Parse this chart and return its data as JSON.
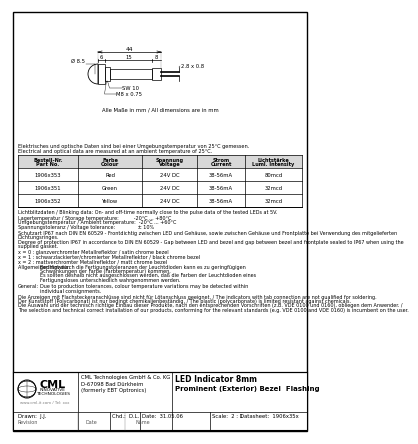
{
  "title_line1": "LED Indicator 8mm",
  "title_line2": "Prominent (Exterior) Bezel  Flashing",
  "company_name": "CML Technologies GmbH & Co. KG",
  "company_addr1": "D-67098 Bad Dürkheim",
  "company_addr2": "(formerly EBT Optronics)",
  "drawn": "J.J.",
  "checked": "D.L.",
  "date": "31.05.06",
  "scale": "2 : 1",
  "datasheet": "1906x35x",
  "note_dimensions": "Alle Maße in mm / All dimensions are in mm",
  "note_meas1": "Elektrisches und optische Daten sind bei einer Umgebungstemperatur von 25°C gemessen.",
  "note_meas2": "Electrical and optical data are measured at an ambient temperature of 25°C.",
  "table_headers": [
    "Bestell-Nr.\nPart No.",
    "Farbe\nColour",
    "Spannung\nVoltage",
    "Strom\nCurrent",
    "Lichtstärke\nLuml. Intensity"
  ],
  "table_rows": [
    [
      "1906x353",
      "Red",
      "24V DC",
      "38-56mA",
      "80mcd"
    ],
    [
      "1906x351",
      "Green",
      "24V DC",
      "38-56mA",
      "32mcd"
    ],
    [
      "1906x352",
      "Yellow",
      "24V DC",
      "38-56mA",
      "32mcd"
    ]
  ],
  "note_flash": "Lichtblitzdaten / Blinking data: On- and off-time normally close to the pulse data of the tested LEDs at 5V.",
  "storage_temp": "Lagertemperatur / Storage temperature:          -20°C ... +80°C",
  "ambient_temp": "Umgebungstemperatur / Ambient temperature:  -20°C ... +60°C",
  "voltage_tol": "Spannungstoleranz / Voltage tolerance:               ± 10%",
  "ip_line1": "Schutzart IP67 nach DIN EN 60529 - Frontdichtig zwischen LED und Gehäuse, sowie zwischen Gehäuse und Frontplatte bei Verwendung des mitgelieferten",
  "ip_line2": "Dichtungsringes.",
  "ip_line3": "Degree of protection IP67 in accordance to DIN EN 60529 - Gap between LED and bezel and gap between bezel and frontplate sealed to IP67 when using the",
  "ip_line4": "supplied gasket.",
  "var_line1": "x = 0 : glanzverchromter Metallreflektor / satin chrome bezel",
  "var_line2": "x = 1 : schwarzlackierter/chromierter Metallreflektor / black chrome bezel",
  "var_line3": "x = 2 : mattverchromter Metallreflektor / matt chrome bezel",
  "gen_label": "Allgemeiner Hinweis:",
  "gen_de1": "Bedingt durch die Fertigungstoleranzen der Leuchtdioden kann es zu geringfügigen",
  "gen_de2": "Schwankungen der Farbe (Farbtemperatur) kommen.",
  "gen_de3": "Es sollten deshalb nicht ausgeschlossen werden, daß die Farben der Leuchtdioden eines",
  "gen_de4": "Fertigungsloses unterschiedlich wahrgenommen werden.",
  "gen_en_label": "General:",
  "gen_en1": "Due to production tolerances, colour temperature variations may be detected within",
  "gen_en2": "individual consignments.",
  "footer1": "Die Anzeigen mit Flachsteckeranschlüsse sind nicht für Lötanschluss geeignet. / The indicators with tab connection are not qualified for soldering.",
  "footer2": "Der Kunststoff (Polycarbonat) ist nur bedingt chemikalienbeständig. / The plastic (polycarbonate) is limited resistant against chemicals.",
  "footer3a": "Die Auswahl und der technisch richtige Einbau dieser Produkte, nach den entsprechenden Vorschriften (z.B. VDE 0100 und 0160), obliegen dem Anwender. /",
  "footer3b": "The selection and technical correct installation of our products, conforming for the relevant standards (e.g. VDE 0100 and VDE 0160) is incumbent on the user.",
  "dim_total": "44",
  "dim_left": "6",
  "dim_mid": "15",
  "dim_right": "8",
  "dim_dia": "Ø 8.5",
  "dim_thread": "M8 x 0.75",
  "dim_sw": "SW 10",
  "dim_pins": "2.8 x 0.8",
  "bg_color": "#ffffff",
  "watermark_color": "#b8cfe0"
}
